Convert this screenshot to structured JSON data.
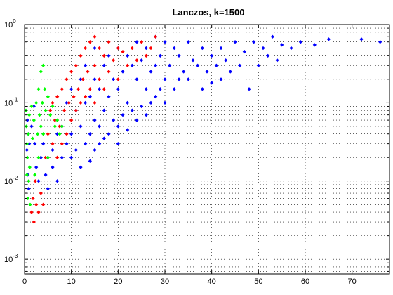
{
  "chart_data": {
    "type": "scatter",
    "title": "Lanczos, k=1500",
    "xlabel": "",
    "ylabel": "",
    "xlim": [
      0,
      78
    ],
    "ylim": [
      0.00065,
      1
    ],
    "yscale": "log",
    "grid": true,
    "x_ticks": [
      0,
      10,
      20,
      30,
      40,
      50,
      60,
      70
    ],
    "x_tick_labels": [
      "0",
      "10",
      "20",
      "30",
      "40",
      "50",
      "60",
      "70"
    ],
    "y_ticks": [
      0.001,
      0.01,
      0.1,
      1
    ],
    "y_tick_labels": [
      {
        "base": "10",
        "exp": "-3"
      },
      {
        "base": "10",
        "exp": "-2"
      },
      {
        "base": "10",
        "exp": "-1"
      },
      {
        "base": "10",
        "exp": "0"
      }
    ],
    "series": [
      {
        "color": "#0000ff",
        "points": [
          [
            0.5,
            0.025
          ],
          [
            0.6,
            0.06
          ],
          [
            0.7,
            0.012
          ],
          [
            0.8,
            0.04
          ],
          [
            0.9,
            0.008
          ],
          [
            1.0,
            0.03
          ],
          [
            1.5,
            0.05
          ],
          [
            2.0,
            0.09
          ],
          [
            2.2,
            0.03
          ],
          [
            2.5,
            0.015
          ],
          [
            3,
            0.01
          ],
          [
            3.5,
            0.02
          ],
          [
            4,
            0.03
          ],
          [
            4.5,
            0.012
          ],
          [
            5,
            0.02
          ],
          [
            5,
            0.008
          ],
          [
            6,
            0.015
          ],
          [
            6,
            0.025
          ],
          [
            7,
            0.04
          ],
          [
            7,
            0.01
          ],
          [
            8,
            0.05
          ],
          [
            8,
            0.02
          ],
          [
            9,
            0.1
          ],
          [
            9,
            0.03
          ],
          [
            10,
            0.15
          ],
          [
            10,
            0.04
          ],
          [
            10,
            0.02
          ],
          [
            11,
            0.08
          ],
          [
            11,
            0.025
          ],
          [
            12,
            0.2
          ],
          [
            12,
            0.05
          ],
          [
            12,
            0.015
          ],
          [
            13,
            0.3
          ],
          [
            13,
            0.1
          ],
          [
            13,
            0.03
          ],
          [
            14,
            0.12
          ],
          [
            14,
            0.04
          ],
          [
            14,
            0.018
          ],
          [
            15,
            0.5
          ],
          [
            15,
            0.2
          ],
          [
            15,
            0.06
          ],
          [
            15,
            0.025
          ],
          [
            16,
            0.15
          ],
          [
            16,
            0.05
          ],
          [
            16,
            0.03
          ],
          [
            17,
            0.3
          ],
          [
            17,
            0.08
          ],
          [
            17,
            0.035
          ],
          [
            18,
            0.4
          ],
          [
            18,
            0.12
          ],
          [
            18,
            0.04
          ],
          [
            19,
            0.2
          ],
          [
            19,
            0.06
          ],
          [
            20,
            0.5
          ],
          [
            20,
            0.15
          ],
          [
            20,
            0.05
          ],
          [
            20,
            0.03
          ],
          [
            21,
            0.25
          ],
          [
            21,
            0.07
          ],
          [
            22,
            0.4
          ],
          [
            22,
            0.1
          ],
          [
            22,
            0.045
          ],
          [
            23,
            0.3
          ],
          [
            23,
            0.08
          ],
          [
            24,
            0.6
          ],
          [
            24,
            0.2
          ],
          [
            24,
            0.06
          ],
          [
            25,
            0.35
          ],
          [
            25,
            0.09
          ],
          [
            26,
            0.5
          ],
          [
            26,
            0.15
          ],
          [
            26,
            0.07
          ],
          [
            27,
            0.25
          ],
          [
            27,
            0.1
          ],
          [
            28,
            0.7
          ],
          [
            28,
            0.3
          ],
          [
            28,
            0.12
          ],
          [
            29,
            0.4
          ],
          [
            29,
            0.15
          ],
          [
            30,
            0.6
          ],
          [
            30,
            0.2
          ],
          [
            30,
            0.1
          ],
          [
            31,
            0.3
          ],
          [
            32,
            0.5
          ],
          [
            32,
            0.15
          ],
          [
            33,
            0.4
          ],
          [
            33,
            0.2
          ],
          [
            34,
            0.25
          ],
          [
            35,
            0.6
          ],
          [
            35,
            0.2
          ],
          [
            36,
            0.35
          ],
          [
            37,
            0.3
          ],
          [
            38,
            0.5
          ],
          [
            38,
            0.15
          ],
          [
            39,
            0.25
          ],
          [
            40,
            0.4
          ],
          [
            40,
            0.18
          ],
          [
            41,
            0.3
          ],
          [
            42,
            0.5
          ],
          [
            42,
            0.2
          ],
          [
            43,
            0.35
          ],
          [
            44,
            0.25
          ],
          [
            45,
            0.6
          ],
          [
            46,
            0.3
          ],
          [
            47,
            0.45
          ],
          [
            48,
            0.15
          ],
          [
            49,
            0.6
          ],
          [
            50,
            0.3
          ],
          [
            51,
            0.5
          ],
          [
            52,
            0.4
          ],
          [
            53,
            0.7
          ],
          [
            54,
            0.35
          ],
          [
            55,
            0.55
          ],
          [
            57,
            0.5
          ],
          [
            59,
            0.6
          ],
          [
            62,
            0.55
          ],
          [
            65,
            0.65
          ],
          [
            72,
            0.65
          ],
          [
            76,
            0.6
          ]
        ]
      },
      {
        "color": "#ff0000",
        "points": [
          [
            1.5,
            0.004
          ],
          [
            1.8,
            0.006
          ],
          [
            2,
            0.003
          ],
          [
            2.3,
            0.01
          ],
          [
            2.5,
            0.005
          ],
          [
            3,
            0.004
          ],
          [
            3.5,
            0.007
          ],
          [
            4,
            0.005
          ],
          [
            4.5,
            0.02
          ],
          [
            5,
            0.04
          ],
          [
            5.5,
            0.08
          ],
          [
            6,
            0.03
          ],
          [
            6,
            0.1
          ],
          [
            6.5,
            0.06
          ],
          [
            7,
            0.12
          ],
          [
            7,
            0.02
          ],
          [
            7.5,
            0.05
          ],
          [
            8,
            0.15
          ],
          [
            8,
            0.03
          ],
          [
            8.5,
            0.08
          ],
          [
            9,
            0.2
          ],
          [
            9,
            0.04
          ],
          [
            9.5,
            0.1
          ],
          [
            10,
            0.25
          ],
          [
            10,
            0.06
          ],
          [
            10.5,
            0.12
          ],
          [
            11,
            0.3
          ],
          [
            11,
            0.08
          ],
          [
            11.5,
            0.15
          ],
          [
            12,
            0.4
          ],
          [
            12,
            0.1
          ],
          [
            12.5,
            0.2
          ],
          [
            13,
            0.5
          ],
          [
            13,
            0.12
          ],
          [
            13.5,
            0.25
          ],
          [
            14,
            0.6
          ],
          [
            14,
            0.15
          ],
          [
            15,
            0.7
          ],
          [
            15,
            0.3
          ],
          [
            15,
            0.1
          ],
          [
            16,
            0.5
          ],
          [
            16,
            0.2
          ],
          [
            17,
            0.4
          ],
          [
            17,
            0.15
          ],
          [
            18,
            0.6
          ],
          [
            18,
            0.25
          ],
          [
            19,
            0.35
          ],
          [
            20,
            0.5
          ],
          [
            20,
            0.2
          ],
          [
            21,
            0.45
          ],
          [
            22,
            0.3
          ],
          [
            23,
            0.5
          ],
          [
            24,
            0.35
          ],
          [
            25,
            0.6
          ],
          [
            26,
            0.4
          ],
          [
            27,
            0.5
          ],
          [
            28,
            0.7
          ]
        ]
      },
      {
        "color": "#00ff00",
        "points": [
          [
            0.3,
            0.08
          ],
          [
            0.4,
            0.05
          ],
          [
            0.5,
            0.03
          ],
          [
            0.5,
            0.012
          ],
          [
            0.6,
            0.02
          ],
          [
            0.7,
            0.006
          ],
          [
            0.8,
            0.04
          ],
          [
            0.9,
            0.01
          ],
          [
            1.0,
            0.07
          ],
          [
            1.1,
            0.015
          ],
          [
            1.2,
            0.005
          ],
          [
            1.5,
            0.09
          ],
          [
            1.7,
            0.035
          ],
          [
            2,
            0.06
          ],
          [
            2.2,
            0.012
          ],
          [
            2.5,
            0.1
          ],
          [
            2.8,
            0.04
          ],
          [
            3,
            0.15
          ],
          [
            3,
            0.02
          ],
          [
            3.2,
            0.07
          ],
          [
            3.5,
            0.25
          ],
          [
            3.5,
            0.05
          ],
          [
            3.8,
            0.1
          ],
          [
            4,
            0.3
          ],
          [
            4,
            0.04
          ],
          [
            4.3,
            0.15
          ],
          [
            4.5,
            0.08
          ],
          [
            5,
            0.12
          ],
          [
            5,
            0.02
          ],
          [
            5.5,
            0.07
          ],
          [
            6,
            0.09
          ],
          [
            6.5,
            0.05
          ],
          [
            7,
            0.06
          ],
          [
            7.5,
            0.04
          ],
          [
            8,
            0.05
          ]
        ]
      }
    ]
  }
}
